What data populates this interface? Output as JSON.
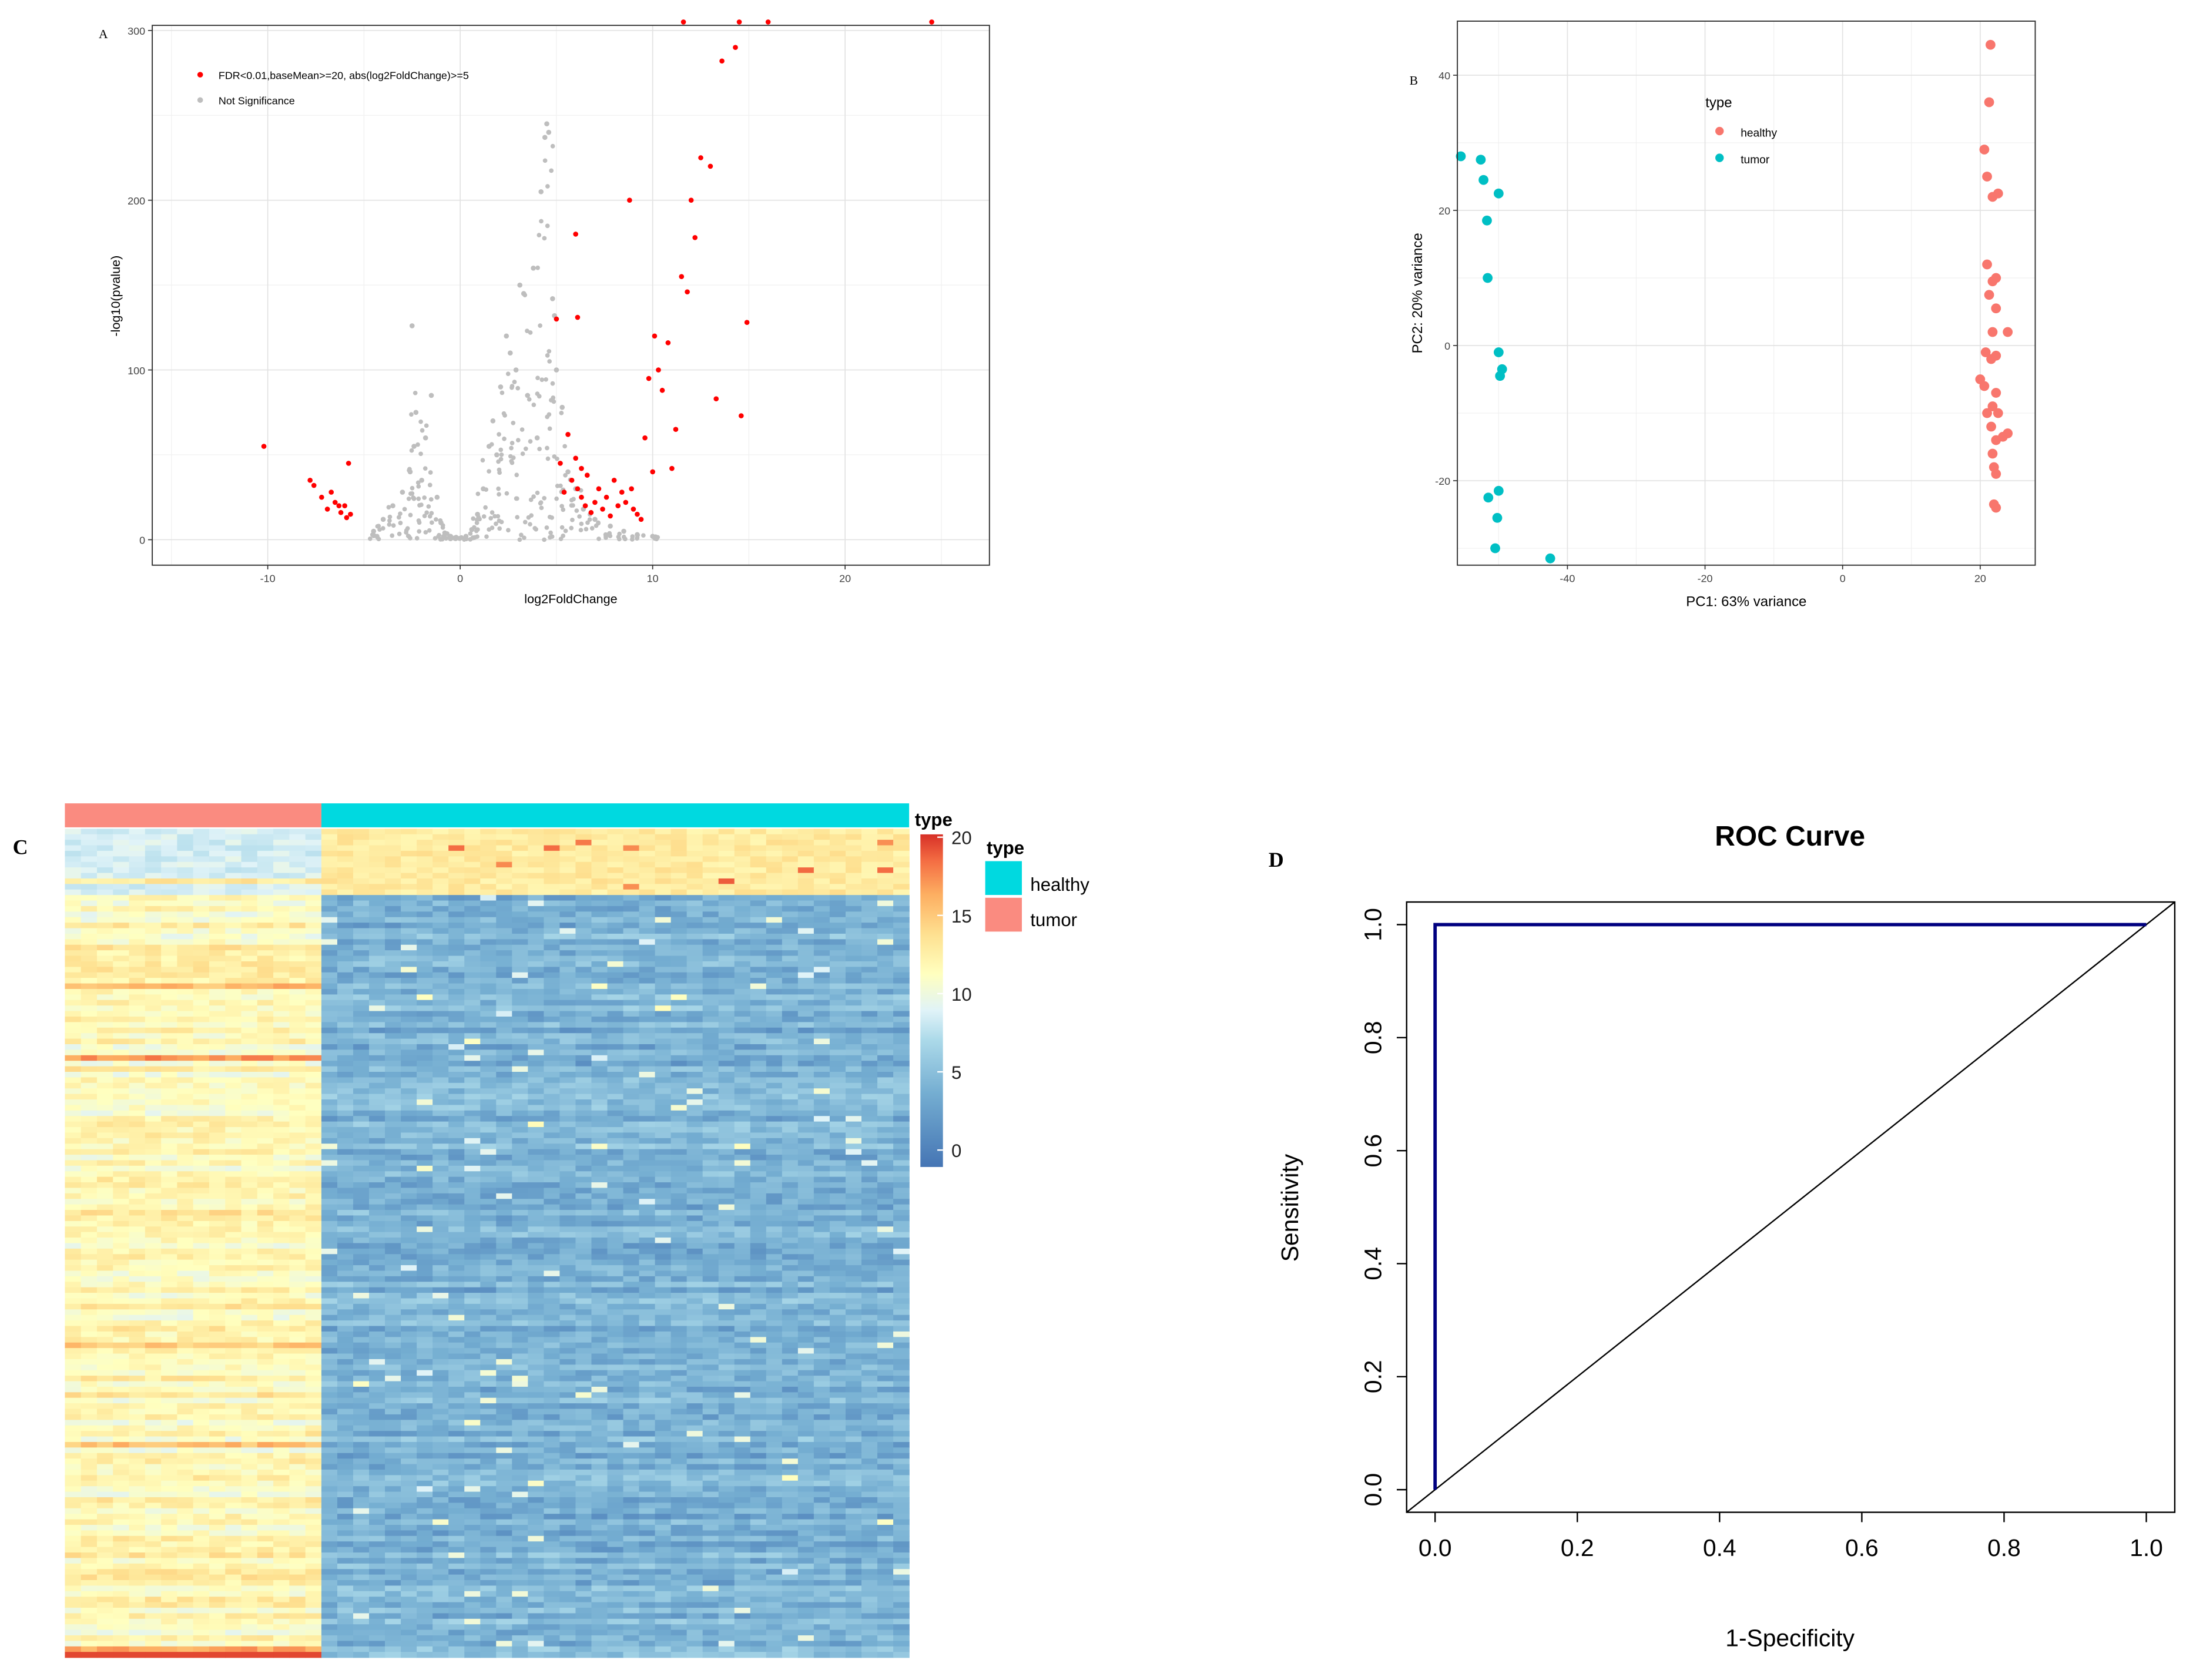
{
  "panels": {
    "A": {
      "letter": "A"
    },
    "B": {
      "letter": "B"
    },
    "C": {
      "letter": "C"
    },
    "D": {
      "letter": "D"
    }
  },
  "chart_data": [
    {
      "panel": "A",
      "type": "scatter",
      "title": "",
      "xlabel": "log2FoldChange",
      "ylabel": "-log10(pvalue)",
      "xlim": [
        -16,
        27.5
      ],
      "ylim": [
        -15,
        303
      ],
      "xticks": [
        -10,
        0,
        10,
        20
      ],
      "yticks": [
        0,
        100,
        200,
        300
      ],
      "grid": true,
      "legend_position": "top-left",
      "series": [
        {
          "name": "FDR<0.01,baseMean>=20, abs(log2FoldChange)>=5",
          "color": "#ff0000",
          "points": [
            [
              -10.2,
              55
            ],
            [
              -7.8,
              35
            ],
            [
              -7.6,
              32
            ],
            [
              -7.2,
              25
            ],
            [
              -6.9,
              18
            ],
            [
              -6.7,
              28
            ],
            [
              -6.5,
              22
            ],
            [
              -6.3,
              20
            ],
            [
              -6.2,
              16
            ],
            [
              -6.0,
              20
            ],
            [
              -5.9,
              13
            ],
            [
              -5.8,
              45
            ],
            [
              -5.7,
              15
            ],
            [
              5.0,
              130
            ],
            [
              5.2,
              45
            ],
            [
              5.4,
              28
            ],
            [
              5.6,
              62
            ],
            [
              5.8,
              35
            ],
            [
              6.0,
              180
            ],
            [
              6.0,
              48
            ],
            [
              6.1,
              30
            ],
            [
              6.1,
              131
            ],
            [
              6.3,
              42
            ],
            [
              6.3,
              25
            ],
            [
              6.5,
              20
            ],
            [
              6.6,
              38
            ],
            [
              6.8,
              16
            ],
            [
              7.0,
              22
            ],
            [
              7.2,
              30
            ],
            [
              7.4,
              18
            ],
            [
              7.6,
              25
            ],
            [
              7.8,
              14
            ],
            [
              8.0,
              35
            ],
            [
              8.2,
              20
            ],
            [
              8.4,
              28
            ],
            [
              8.6,
              22
            ],
            [
              8.8,
              200
            ],
            [
              8.9,
              30
            ],
            [
              9.0,
              18
            ],
            [
              9.2,
              15
            ],
            [
              9.4,
              12
            ],
            [
              9.6,
              60
            ],
            [
              9.8,
              95
            ],
            [
              10.0,
              40
            ],
            [
              10.1,
              120
            ],
            [
              10.3,
              100
            ],
            [
              10.5,
              88
            ],
            [
              10.8,
              116
            ],
            [
              11.0,
              42
            ],
            [
              11.2,
              65
            ],
            [
              11.5,
              155
            ],
            [
              11.6,
              305
            ],
            [
              11.8,
              146
            ],
            [
              12.0,
              200
            ],
            [
              12.2,
              178
            ],
            [
              12.5,
              225
            ],
            [
              13.0,
              220
            ],
            [
              13.3,
              83
            ],
            [
              13.6,
              282
            ],
            [
              14.3,
              290
            ],
            [
              14.6,
              73
            ],
            [
              14.9,
              128
            ],
            [
              14.5,
              305
            ],
            [
              16.0,
              305
            ],
            [
              24.5,
              305
            ]
          ]
        },
        {
          "name": "Not Significance",
          "color": "#bebebe",
          "points": [
            [
              -4.5,
              5
            ],
            [
              -4.0,
              12
            ],
            [
              -3.5,
              20
            ],
            [
              -3.0,
              28
            ],
            [
              -2.6,
              40
            ],
            [
              -2.4,
              55
            ],
            [
              -2.3,
              75
            ],
            [
              -2.5,
              126
            ],
            [
              -2.0,
              35
            ],
            [
              -1.8,
              60
            ],
            [
              -1.5,
              85
            ],
            [
              -1.2,
              25
            ],
            [
              -1.0,
              10
            ],
            [
              -0.8,
              4
            ],
            [
              -0.5,
              2
            ],
            [
              -0.2,
              1
            ],
            [
              0.3,
              2
            ],
            [
              0.6,
              6
            ],
            [
              0.9,
              15
            ],
            [
              1.2,
              30
            ],
            [
              1.5,
              55
            ],
            [
              1.7,
              70
            ],
            [
              1.9,
              50
            ],
            [
              2.1,
              90
            ],
            [
              2.4,
              120
            ],
            [
              2.6,
              110
            ],
            [
              2.9,
              100
            ],
            [
              3.1,
              150
            ],
            [
              3.3,
              145
            ],
            [
              3.5,
              85
            ],
            [
              3.8,
              160
            ],
            [
              4.0,
              60
            ],
            [
              4.2,
              205
            ],
            [
              4.4,
              237
            ],
            [
              4.5,
              245
            ],
            [
              4.6,
              240
            ],
            [
              4.8,
              142
            ],
            [
              4.9,
              132
            ],
            [
              5.0,
              100
            ],
            [
              5.3,
              78
            ],
            [
              5.6,
              40
            ],
            [
              6.0,
              30
            ],
            [
              6.4,
              18
            ],
            [
              7.0,
              12
            ],
            [
              7.8,
              8
            ],
            [
              8.5,
              5
            ],
            [
              9.2,
              3
            ],
            [
              10.0,
              2
            ]
          ]
        }
      ]
    },
    {
      "panel": "B",
      "type": "scatter",
      "title": "",
      "xlabel": "PC1: 63% variance",
      "ylabel": "PC2: 20% variance",
      "xlim": [
        -56,
        28
      ],
      "ylim": [
        -32.5,
        48
      ],
      "xticks": [
        -40,
        -20,
        0,
        20
      ],
      "yticks": [
        -20,
        0,
        20,
        40
      ],
      "grid": true,
      "legend_title": "type",
      "legend_position": "top-center",
      "series": [
        {
          "name": "healthy",
          "color": "#f8766d",
          "points": [
            [
              21.5,
              44.5
            ],
            [
              21.3,
              36
            ],
            [
              20.6,
              29
            ],
            [
              21.0,
              25
            ],
            [
              21.8,
              22
            ],
            [
              22.6,
              22.5
            ],
            [
              21.0,
              12
            ],
            [
              21.3,
              7.5
            ],
            [
              21.8,
              9.5
            ],
            [
              22.3,
              10
            ],
            [
              22.3,
              5.5
            ],
            [
              21.8,
              2
            ],
            [
              24.0,
              2
            ],
            [
              20.8,
              -1
            ],
            [
              21.6,
              -2
            ],
            [
              22.3,
              -1.5
            ],
            [
              20.0,
              -5
            ],
            [
              20.6,
              -6
            ],
            [
              22.3,
              -7
            ],
            [
              21.8,
              -9
            ],
            [
              21.0,
              -10
            ],
            [
              22.6,
              -10
            ],
            [
              21.6,
              -12
            ],
            [
              22.3,
              -14
            ],
            [
              24.0,
              -13
            ],
            [
              23.3,
              -13.5
            ],
            [
              21.8,
              -16
            ],
            [
              22.0,
              -18
            ],
            [
              22.3,
              -19
            ],
            [
              22.0,
              -23.5
            ],
            [
              22.3,
              -24
            ]
          ]
        },
        {
          "name": "tumor",
          "color": "#00bfc4",
          "points": [
            [
              -55.5,
              28
            ],
            [
              -52.6,
              27.5
            ],
            [
              -52.2,
              24.5
            ],
            [
              -50.0,
              22.5
            ],
            [
              -51.7,
              18.5
            ],
            [
              -51.6,
              10
            ],
            [
              -50.0,
              -1
            ],
            [
              -49.5,
              -3.5
            ],
            [
              -49.8,
              -4.5
            ],
            [
              -50.0,
              -21.5
            ],
            [
              -51.5,
              -22.5
            ],
            [
              -50.2,
              -25.5
            ],
            [
              -50.5,
              -30
            ],
            [
              -42.5,
              -31.5
            ]
          ]
        }
      ]
    },
    {
      "panel": "C",
      "type": "heatmap",
      "title": "",
      "columns": {
        "tumor": 16,
        "healthy": 37
      },
      "rows": 150,
      "annotation_title": "type",
      "legend_title": "type",
      "color_scale": {
        "ticks": [
          0,
          5,
          10,
          15,
          20
        ],
        "range": [
          -1.5,
          20
        ],
        "colors": [
          "#4575b4",
          "#74add1",
          "#abd9e9",
          "#e0f3f8",
          "#ffffbf",
          "#fee090",
          "#fdae61",
          "#f46d43",
          "#d73027"
        ]
      },
      "categories": [
        {
          "name": "healthy",
          "color": "#00d9e0"
        },
        {
          "name": "tumor",
          "color": "#fa8b80"
        }
      ]
    },
    {
      "panel": "D",
      "type": "line",
      "title": "ROC Curve",
      "xlabel": "1-Specificity",
      "ylabel": "Sensitivity",
      "xlim": [
        -0.04,
        1.04
      ],
      "ylim": [
        -0.04,
        1.04
      ],
      "xticks": [
        "0.0",
        "0.2",
        "0.4",
        "0.6",
        "0.8",
        "1.0"
      ],
      "yticks": [
        "0.0",
        "0.2",
        "0.4",
        "0.6",
        "0.8",
        "1.0"
      ],
      "series": [
        {
          "color": "#000080",
          "x": [
            0,
            0,
            1
          ],
          "y": [
            0,
            1,
            1
          ]
        },
        {
          "color": "#000000",
          "x": [
            0,
            1
          ],
          "y": [
            0,
            1
          ]
        }
      ]
    }
  ]
}
